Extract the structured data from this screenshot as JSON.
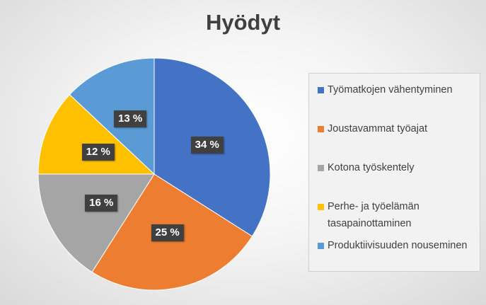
{
  "chart_data": {
    "type": "pie",
    "title": "Hyödyt",
    "categories": [
      "Työmatkojen vähentyminen",
      "Joustavammat työajat",
      "Kotona työskentely",
      "Perhe- ja työelämän tasapainottaminen",
      "Produktiivisuuden nouseminen"
    ],
    "values": [
      34,
      25,
      16,
      12,
      13
    ],
    "data_labels": [
      "34 %",
      "25 %",
      "16 %",
      "12 %",
      "13 %"
    ],
    "colors": [
      "#4472C4",
      "#ED7D31",
      "#A5A5A5",
      "#FFC000",
      "#5B9BD5"
    ],
    "legend": "right"
  }
}
